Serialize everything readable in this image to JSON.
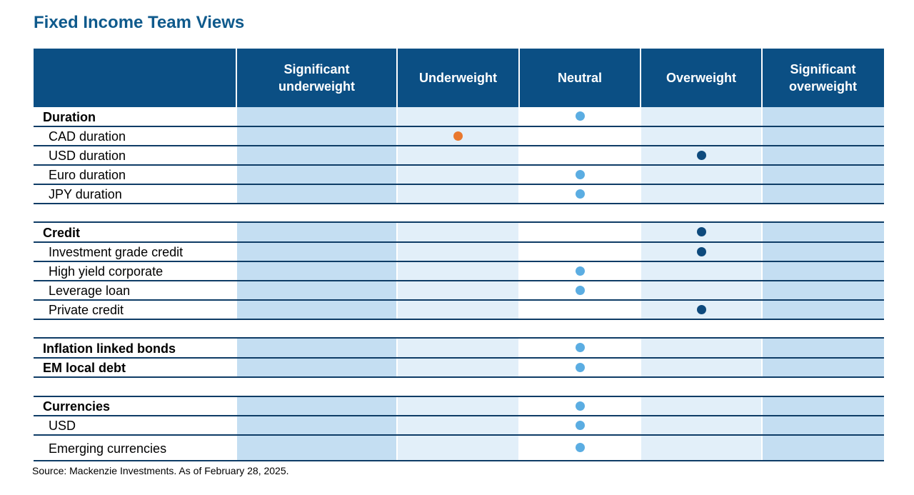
{
  "title": "Fixed Income Team Views",
  "columns": [
    "",
    "Significant\nunderweight",
    "Underweight",
    "Neutral",
    "Overweight",
    "Significant\noverweight"
  ],
  "legend_colors": {
    "underweight": "#E9782E",
    "neutral": "#5BADE2",
    "overweight": "#0E4A7D"
  },
  "rows": [
    {
      "label": "Duration",
      "type": "main",
      "view": 3
    },
    {
      "label": "CAD duration",
      "type": "sub",
      "view": 2
    },
    {
      "label": "USD duration",
      "type": "sub",
      "view": 4
    },
    {
      "label": "Euro duration",
      "type": "sub",
      "view": 3
    },
    {
      "label": "JPY duration",
      "type": "sub",
      "view": 3
    },
    {
      "type": "spacer"
    },
    {
      "label": "Credit",
      "type": "main",
      "view": 4
    },
    {
      "label": "Investment grade credit",
      "type": "sub",
      "view": 4
    },
    {
      "label": "High yield corporate",
      "type": "sub",
      "view": 3
    },
    {
      "label": "Leverage loan",
      "type": "sub",
      "view": 3
    },
    {
      "label": "Private credit",
      "type": "sub",
      "view": 4
    },
    {
      "type": "spacer"
    },
    {
      "label": "Inflation linked bonds",
      "type": "main",
      "view": 3
    },
    {
      "label": "EM local debt",
      "type": "main",
      "view": 3
    },
    {
      "type": "spacer"
    },
    {
      "label": "Currencies",
      "type": "main",
      "view": 3
    },
    {
      "label": "USD",
      "type": "sub",
      "view": 3
    },
    {
      "label": "Emerging currencies",
      "type": "sub",
      "view": 3
    }
  ],
  "source": "Source: Mackenzie Investments. As of February 28, 2025."
}
